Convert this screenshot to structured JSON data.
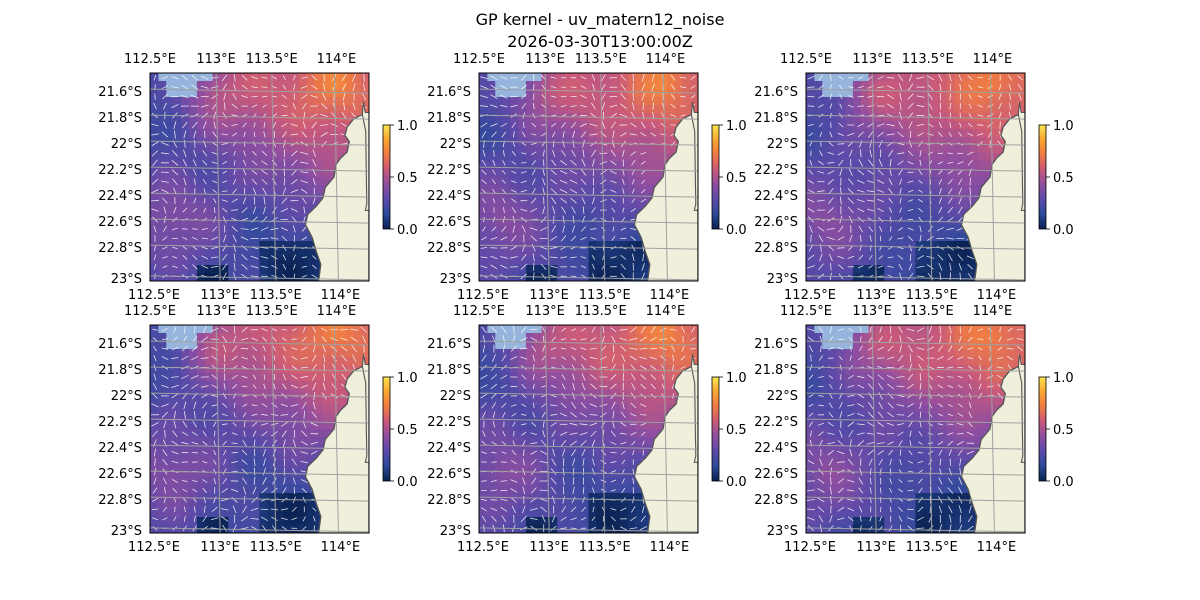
{
  "figure": {
    "title": "GP kernel - uv_matern12_noise",
    "subtitle": "2026-03-30T13:00:00Z"
  },
  "colors": {
    "ocean": "#96b4dc",
    "land": "#efefdc",
    "coastline": "#555555",
    "gridlines": "#a0a0a0",
    "arrows": "#ffffff",
    "colormap_stops": [
      "#08204f",
      "#2b4a9a",
      "#5b4aa8",
      "#8f4ea0",
      "#c95a7a",
      "#ee7a45",
      "#f8a533",
      "#fbe64f"
    ]
  },
  "map": {
    "lon_ticks": [
      "112.5°E",
      "113°E",
      "113.5°E",
      "114°E"
    ],
    "lat_ticks": [
      "21.6°S",
      "21.8°S",
      "22°S",
      "22.2°S",
      "22.4°S",
      "22.6°S",
      "22.8°S",
      "23°S"
    ]
  },
  "colorbar": {
    "ticks": [
      "1.0",
      "0.5",
      "0.0"
    ],
    "range": [
      0.0,
      1.0
    ]
  },
  "panels": [
    {
      "row": 1,
      "col": 1
    },
    {
      "row": 1,
      "col": 2
    },
    {
      "row": 1,
      "col": 3
    },
    {
      "row": 2,
      "col": 1
    },
    {
      "row": 2,
      "col": 2
    },
    {
      "row": 2,
      "col": 3
    }
  ]
}
